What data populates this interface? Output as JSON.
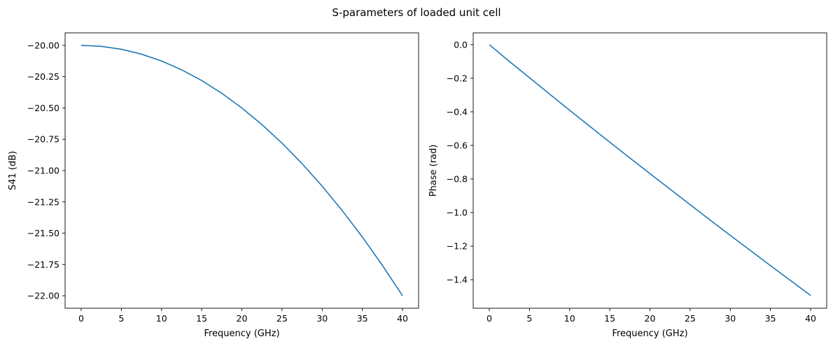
{
  "title": "S-parameters of loaded unit cell",
  "colors": {
    "series": "#1f77b4",
    "axes": "#000000",
    "background": "#ffffff"
  },
  "chart_data": [
    {
      "type": "line",
      "xlabel": "Frequency (GHz)",
      "ylabel": "S41 (dB)",
      "xlim": [
        -2,
        42
      ],
      "ylim": [
        -22.1,
        -19.9
      ],
      "xticks": [
        0,
        5,
        10,
        15,
        20,
        25,
        30,
        35,
        40
      ],
      "xtick_labels": [
        "0",
        "5",
        "10",
        "15",
        "20",
        "25",
        "30",
        "35",
        "40"
      ],
      "yticks": [
        -20.0,
        -20.25,
        -20.5,
        -20.75,
        -21.0,
        -21.25,
        -21.5,
        -21.75,
        -22.0
      ],
      "ytick_labels": [
        "−20.00",
        "−20.25",
        "−20.50",
        "−20.75",
        "−21.00",
        "−21.25",
        "−21.50",
        "−21.75",
        "−22.00"
      ],
      "grid": false,
      "series": [
        {
          "x": [
            0,
            2.5,
            5,
            7.5,
            10,
            12.5,
            15,
            17.5,
            20,
            22.5,
            25,
            27.5,
            30,
            32.5,
            35,
            37.5,
            40
          ],
          "y": [
            -20.0,
            -20.008,
            -20.031,
            -20.07,
            -20.125,
            -20.195,
            -20.281,
            -20.383,
            -20.5,
            -20.633,
            -20.781,
            -20.945,
            -21.125,
            -21.32,
            -21.531,
            -21.758,
            -22.0
          ]
        }
      ]
    },
    {
      "type": "line",
      "xlabel": "Frequency (GHz)",
      "ylabel": "Phase (rad)",
      "xlim": [
        -2,
        42
      ],
      "ylim": [
        -1.57,
        0.07
      ],
      "xticks": [
        0,
        5,
        10,
        15,
        20,
        25,
        30,
        35,
        40
      ],
      "xtick_labels": [
        "0",
        "5",
        "10",
        "15",
        "20",
        "25",
        "30",
        "35",
        "40"
      ],
      "yticks": [
        0.0,
        -0.2,
        -0.4,
        -0.6,
        -0.8,
        -1.0,
        -1.2,
        -1.4
      ],
      "ytick_labels": [
        "0.0",
        "−0.2",
        "−0.4",
        "−0.6",
        "−0.8",
        "−1.0",
        "−1.2",
        "−1.4"
      ],
      "grid": false,
      "series": [
        {
          "x": [
            0,
            2.5,
            5,
            7.5,
            10,
            12.5,
            15,
            17.5,
            20,
            22.5,
            25,
            27.5,
            30,
            32.5,
            35,
            37.5,
            40
          ],
          "y": [
            0.0,
            -0.1,
            -0.197,
            -0.294,
            -0.391,
            -0.486,
            -0.581,
            -0.675,
            -0.768,
            -0.861,
            -0.953,
            -1.045,
            -1.136,
            -1.226,
            -1.316,
            -1.405,
            -1.494
          ]
        }
      ]
    }
  ]
}
